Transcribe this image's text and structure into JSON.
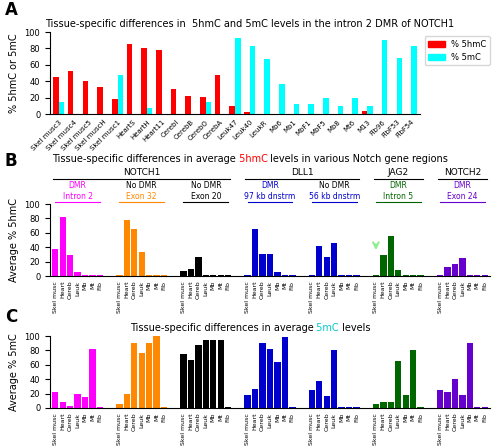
{
  "chart_data": [
    {
      "type": "bar",
      "panel_label": "A",
      "title": "Tissue-specific differences in  5hmC and 5mC levels in the intron 2 DMR of NOTCH1",
      "y_label": "% 5hmC or 5mC",
      "categories": [
        "Skel musc3",
        "Skel musc4",
        "Skel musc5",
        "Skel muscH",
        "Skel musc1",
        "HeartS",
        "HeartH",
        "Heart11",
        "CerebI",
        "CerebB",
        "CerebO",
        "CerebA",
        "Leuk47",
        "Leuk40",
        "LeukR",
        "Mb6",
        "Mb1",
        "MbF1",
        "MbF5",
        "Mb8",
        "Mt6",
        "M13",
        "Fib96",
        "FibF53",
        "FibF54"
      ],
      "series": [
        {
          "name": "% 5hmC",
          "color": "red",
          "values": [
            45,
            52,
            40,
            33,
            18,
            85,
            80,
            78,
            30,
            22,
            21,
            47,
            10,
            2,
            0,
            0,
            0,
            0,
            0,
            0,
            0,
            4,
            0,
            0,
            0
          ]
        },
        {
          "name": "% 5mC",
          "color": "cyan",
          "values": [
            15,
            0,
            0,
            0,
            47,
            0,
            7,
            0,
            0,
            0,
            15,
            0,
            93,
            83,
            67,
            37,
            12,
            12,
            20,
            10,
            20,
            10,
            90,
            68,
            83
          ]
        }
      ],
      "ylim": [
        0,
        100
      ],
      "yticks": [
        0,
        20,
        40,
        60,
        80,
        100
      ],
      "legend": "upper right"
    },
    {
      "type": "bar",
      "panel_label": "B",
      "title": [
        {
          "text": "Tissue-specific differences in average ",
          "color": "black"
        },
        {
          "text": "5hmC",
          "color": "red"
        },
        {
          "text": " levels in various Notch gene regions",
          "color": "black"
        }
      ],
      "y_label": "Average % 5hmC",
      "groups": [
        {
          "label": "Intron 2",
          "note": "DMR",
          "note_color": "#ff00ff",
          "color": "#ff00ff",
          "categories": [
            "Skel musc",
            "Heart",
            "Cereb",
            "Leuk",
            "Mb",
            "Mt",
            "Fib"
          ],
          "values": [
            38,
            82,
            29,
            5,
            1,
            1,
            1
          ]
        },
        {
          "label": "Exon 32",
          "note": "No DMR",
          "note_color": "black",
          "color": "#ff8800",
          "categories": [
            "Skel musc",
            "Heart",
            "Cereb",
            "Leuk",
            "Mb",
            "Mt",
            "Fib"
          ],
          "values": [
            2,
            78,
            65,
            33,
            2,
            1,
            1
          ]
        },
        {
          "label": "Exon 20",
          "note": "No DMR",
          "note_color": "black",
          "color": "#000000",
          "categories": [
            "Skel musc",
            "Heart",
            "Cereb",
            "Leuk",
            "Mb",
            "Mt",
            "Fib"
          ],
          "values": [
            7,
            10,
            26,
            1,
            1,
            1,
            1
          ]
        },
        {
          "label": "97 kb dnstrm",
          "note": "DMR",
          "note_color": "#0000cc",
          "color": "#0000cc",
          "categories": [
            "Skel musc",
            "Heart",
            "Cereb",
            "Leuk",
            "Mb",
            "Mt",
            "Fib"
          ],
          "values": [
            2,
            65,
            31,
            31,
            6,
            1,
            1
          ]
        },
        {
          "label": "56 kb dnstrm",
          "note": "No DMR",
          "note_color": "black",
          "color": "#0000cc",
          "categories": [
            "Skel musc",
            "Heart",
            "Cereb",
            "Leuk",
            "Mb",
            "Mt",
            "Fib"
          ],
          "values": [
            1,
            42,
            27,
            46,
            1,
            1,
            1
          ]
        },
        {
          "label": "Intron 5",
          "note": "DMR",
          "note_color": "#006600",
          "color": "#006600",
          "categories": [
            "Skel musc",
            "Heart",
            "Cereb",
            "Leuk",
            "Mb",
            "Mt",
            "Fib"
          ],
          "values": [
            1,
            29,
            56,
            8,
            1,
            1,
            1
          ]
        },
        {
          "label": "Exon 24",
          "note": "DMR",
          "note_color": "#6600cc",
          "color": "#6600cc",
          "categories": [
            "Skel musc",
            "Heart",
            "Cereb",
            "Leuk",
            "Mb",
            "Mt",
            "Fib"
          ],
          "values": [
            1,
            12,
            16,
            25,
            1,
            1,
            1
          ]
        }
      ],
      "gene_groups": [
        {
          "label": "NOTCH1",
          "groups": [
            0,
            1,
            2
          ]
        },
        {
          "label": "DLL1",
          "groups": [
            3,
            4
          ]
        },
        {
          "label": "JAG2",
          "groups": [
            5
          ]
        },
        {
          "label": "NOTCH2",
          "groups": [
            6
          ]
        }
      ],
      "annotations": [
        {
          "type": "arrow",
          "group": 5,
          "index": 0,
          "from": 48,
          "to": 32,
          "color": "#90ee90"
        }
      ],
      "ylim": [
        0,
        100
      ],
      "yticks": [
        0,
        20,
        40,
        60,
        80,
        100
      ]
    },
    {
      "type": "bar",
      "panel_label": "C",
      "title": [
        {
          "text": "Tissue-specific differences in average ",
          "color": "black"
        },
        {
          "text": "5mC",
          "color": "#00cccc"
        },
        {
          "text": " levels",
          "color": "black"
        }
      ],
      "y_label": "Average % 5mC",
      "groups": [
        {
          "color": "#ff00ff",
          "categories": [
            "Skel musc",
            "Heart",
            "Cereb",
            "Leuk",
            "Mb",
            "Mt",
            "Fib"
          ],
          "values": [
            22,
            8,
            3,
            20,
            15,
            82,
            1
          ]
        },
        {
          "color": "#ff8800",
          "categories": [
            "Skel musc",
            "Heart",
            "Cereb",
            "Leuk",
            "Mb",
            "Mt",
            "Fib"
          ],
          "values": [
            5,
            20,
            90,
            77,
            90,
            100,
            1
          ]
        },
        {
          "color": "#000000",
          "categories": [
            "Skel musc",
            "Heart",
            "Cereb",
            "Leuk",
            "Mb",
            "Mt",
            "Fib"
          ],
          "values": [
            75,
            67,
            87,
            95,
            95,
            95,
            1
          ]
        },
        {
          "color": "#0000cc",
          "categories": [
            "Skel musc",
            "Heart",
            "Cereb",
            "Leuk",
            "Mb",
            "Mt",
            "Fib"
          ],
          "values": [
            18,
            27,
            90,
            82,
            64,
            98,
            1
          ]
        },
        {
          "color": "#0000cc",
          "categories": [
            "Skel musc",
            "Heart",
            "Cereb",
            "Leuk",
            "Mb",
            "Mt",
            "Fib"
          ],
          "values": [
            25,
            38,
            16,
            80,
            1,
            1,
            1
          ]
        },
        {
          "color": "#006600",
          "categories": [
            "Skel musc",
            "Heart",
            "Cereb",
            "Leuk",
            "Mb",
            "Mt",
            "Fib"
          ],
          "values": [
            5,
            8,
            8,
            65,
            18,
            80,
            1
          ]
        },
        {
          "color": "#6600cc",
          "categories": [
            "Skel musc",
            "Heart",
            "Cereb",
            "Leuk",
            "Mb",
            "Mt",
            "Fib"
          ],
          "values": [
            25,
            22,
            40,
            18,
            90,
            1,
            1
          ]
        }
      ],
      "ylim": [
        0,
        100
      ],
      "yticks": [
        0,
        20,
        40,
        60,
        80,
        100
      ]
    }
  ]
}
